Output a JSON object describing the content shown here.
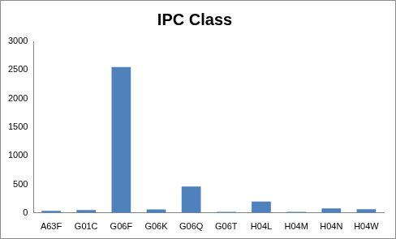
{
  "chart_data": {
    "type": "bar",
    "title": "IPC Class",
    "categories": [
      "A63F",
      "G01C",
      "G06F",
      "G06K",
      "G06Q",
      "G06T",
      "H04L",
      "H04M",
      "H04N",
      "H04W"
    ],
    "values": [
      35,
      50,
      2550,
      60,
      460,
      20,
      200,
      20,
      80,
      65
    ],
    "color": "#4f81bd",
    "ylim": [
      0,
      3000
    ],
    "yticks": [
      0,
      500,
      1000,
      1500,
      2000,
      2500,
      3000
    ],
    "grid": false
  }
}
